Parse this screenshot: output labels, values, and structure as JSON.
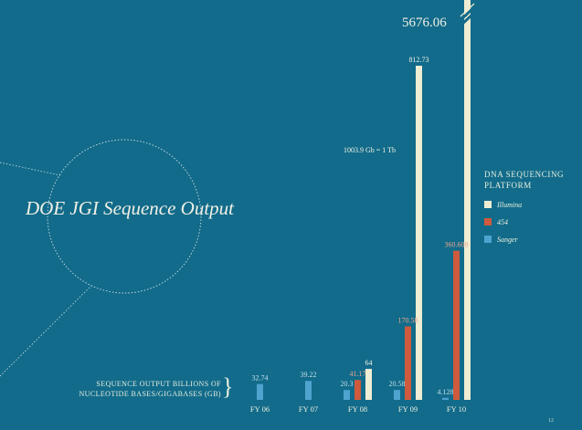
{
  "page": {
    "number": "12"
  },
  "chart_data": {
    "type": "bar",
    "title": "DOE JGI Sequence Output",
    "ylabel": "SEQUENCE OUTPUT BILLIONS OF NUCLEOTIDE BASES/GIGABASES (GB)",
    "annotation": "1003.9 Gb = 1 Tb",
    "legend_title": "DNA SEQUENCING PLATFORM",
    "categories": [
      "FY 06",
      "FY 07",
      "FY 08",
      "FY 09",
      "FY 10"
    ],
    "series": [
      {
        "name": "Sanger",
        "color": "#4ea3cf",
        "values": [
          32.74,
          39.22,
          20.3,
          20.58,
          4.128
        ],
        "labels": [
          "32.74",
          "39.22",
          "20.3",
          "20.58",
          "4.128"
        ]
      },
      {
        "name": "454",
        "color": "#cf5a3c",
        "values": [
          null,
          null,
          41.17,
          170.58,
          360.608
        ],
        "labels": [
          "",
          "",
          "41.17",
          "170.58",
          "360.608"
        ]
      },
      {
        "name": "Illumina",
        "color": "#efedd3",
        "values": [
          null,
          null,
          64,
          812.73,
          5676.06
        ],
        "labels": [
          "",
          "",
          "64",
          "812.73",
          "5676.06"
        ]
      }
    ],
    "axis_break": {
      "series": "Illumina",
      "category": "FY 10"
    }
  }
}
